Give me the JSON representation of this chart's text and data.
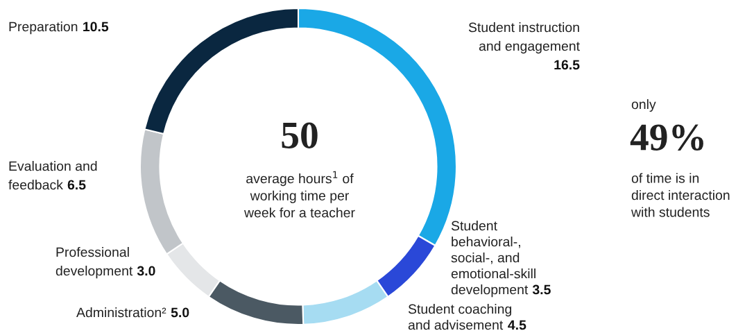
{
  "chart_data": {
    "type": "donut",
    "categories": [
      "Student instruction\nand engagement",
      "Student\nbehavioral-,\nsocial-, and\nemotional-skill\ndevelopment",
      "Student coaching\nand advisement",
      "Administration²",
      "Professional\ndevelopment",
      "Evaluation and\nfeedback",
      "Preparation"
    ],
    "values": [
      16.5,
      3.5,
      4.5,
      5.0,
      3.0,
      6.5,
      10.5
    ],
    "colors": [
      "#1aa8e6",
      "#2a48d8",
      "#a6dcf2",
      "#4b5963",
      "#e4e6e8",
      "#c1c5c9",
      "#0a2740"
    ],
    "value_labels": [
      "16.5",
      "3.5",
      "4.5",
      "5.0",
      "3.0",
      "6.5",
      "10.5"
    ],
    "annotations": [
      "50",
      "average hours$^{1}$ of\nworking time per\nweek for a teacher",
      "only",
      "49%",
      "of time is in\ndirect interaction\nwith students"
    ]
  }
}
